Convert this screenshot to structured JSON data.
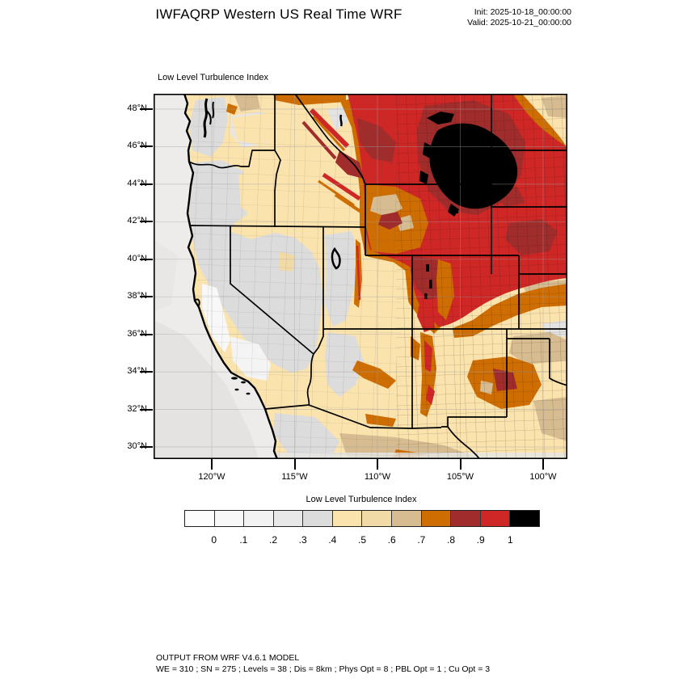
{
  "header": {
    "title": "IWFAQRP Western US Real Time WRF",
    "init_label": "Init: 2025-10-18_00:00:00",
    "valid_label": "Valid: 2025-10-21_00:00:00"
  },
  "map": {
    "panel_title": "Low Level Turbulence Index",
    "lat_ticks": [
      "48°N",
      "46°N",
      "44°N",
      "42°N",
      "40°N",
      "38°N",
      "36°N",
      "34°N",
      "32°N",
      "30°N"
    ],
    "lon_ticks": [
      "120°W",
      "115°W",
      "110°W",
      "105°W",
      "100°W"
    ]
  },
  "colorbar": {
    "title": "Low Level Turbulence Index",
    "tick_labels": [
      "0",
      ".1",
      ".2",
      ".3",
      ".4",
      ".5",
      ".6",
      ".7",
      ".8",
      ".9",
      "1"
    ],
    "cell_colors": [
      "#FDFDFD",
      "#F8F8F8",
      "#F2F2F2",
      "#E8E8E8",
      "#DCDCDC",
      "#FBE3AE",
      "#F1DAA6",
      "#D6BC90",
      "#CE6D02",
      "#A12C2C",
      "#CE2726",
      "#000000"
    ]
  },
  "footer": {
    "line1": "OUTPUT FROM WRF V4.6.1 MODEL",
    "line2": "WE = 310 ; SN = 275 ; Levels = 38 ; Dis = 8km ; Phys Opt = 8 ; PBL Opt = 1 ; Cu Opt = 3"
  }
}
